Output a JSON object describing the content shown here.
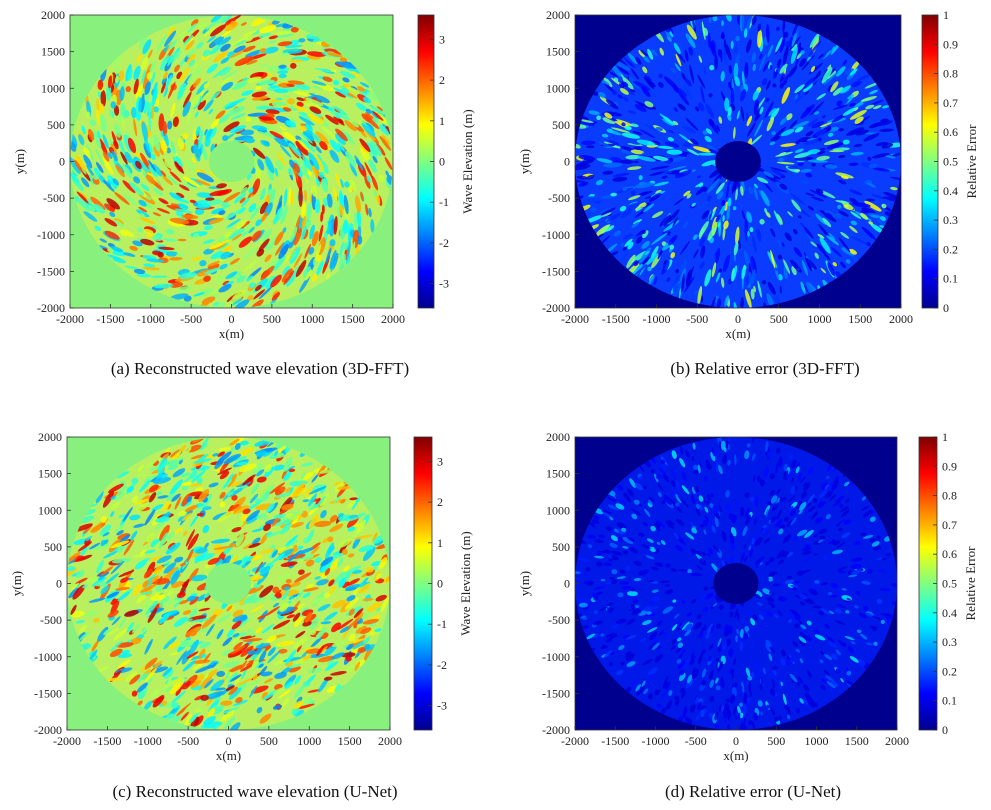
{
  "colors": {
    "jet": [
      "#00008f",
      "#0000ff",
      "#0080ff",
      "#00ffff",
      "#80ff80",
      "#ffff00",
      "#ff8000",
      "#ff0000",
      "#800000"
    ],
    "field_background": "#88f07c",
    "error_background": "#00008f",
    "hole": "#88f07c",
    "error_hole": "#00008f"
  },
  "chart_data": [
    {
      "id": "a",
      "type": "heatmap",
      "title": "",
      "caption": "(a)  Reconstructed wave elevation (3D-FFT)",
      "xlabel": "x(m)",
      "ylabel": "y(m)",
      "xlim": [
        -2000,
        2000
      ],
      "ylim": [
        -2000,
        2000
      ],
      "xticks": [
        "-2000",
        "-1500",
        "-1000",
        "-500",
        "0",
        "500",
        "1000",
        "1500",
        "2000"
      ],
      "yticks": [
        "2000",
        "1500",
        "1000",
        "500",
        "0",
        "-500",
        "-1000",
        "-1500",
        "-2000"
      ],
      "colorbar": {
        "label": "Wave Elevation (m)",
        "range": [
          -3.6,
          3.6
        ],
        "ticks": [
          "3",
          "2",
          "1",
          "0",
          "-1",
          "-2",
          "-3"
        ]
      },
      "field": {
        "kind": "elevation",
        "outer_radius": 2000,
        "inner_radius": 280,
        "hole_x": 0,
        "hole_y": 0
      }
    },
    {
      "id": "b",
      "type": "heatmap",
      "title": "",
      "caption": "(b)  Relative error (3D-FFT)",
      "xlabel": "x(m)",
      "ylabel": "y(m)",
      "xlim": [
        -2000,
        2000
      ],
      "ylim": [
        -2000,
        2000
      ],
      "xticks": [
        "-2000",
        "-1500",
        "-1000",
        "-500",
        "0",
        "500",
        "1000",
        "1500",
        "2000"
      ],
      "yticks": [
        "2000",
        "1500",
        "1000",
        "500",
        "0",
        "-500",
        "-1000",
        "-1500",
        "-2000"
      ],
      "colorbar": {
        "label": "Relative Error",
        "range": [
          0,
          1
        ],
        "ticks": [
          "1",
          "0.9",
          "0.8",
          "0.7",
          "0.6",
          "0.5",
          "0.4",
          "0.3",
          "0.2",
          "0.1",
          "0"
        ]
      },
      "field": {
        "kind": "error",
        "outer_radius": 2000,
        "inner_radius": 280,
        "hole_x": 0,
        "hole_y": 0
      }
    },
    {
      "id": "c",
      "type": "heatmap",
      "title": "",
      "caption": "(c)  Reconstructed wave elevation (U-Net)",
      "xlabel": "x(m)",
      "ylabel": "y(m)",
      "xlim": [
        -2000,
        2000
      ],
      "ylim": [
        -2000,
        2000
      ],
      "xticks": [
        "-2000",
        "-1500",
        "-1000",
        "-500",
        "0",
        "500",
        "1000",
        "1500",
        "2000"
      ],
      "yticks": [
        "2000",
        "1500",
        "1000",
        "500",
        "0",
        "-500",
        "-1000",
        "-1500",
        "-2000"
      ],
      "colorbar": {
        "label": "Wave Elevation (m)",
        "range": [
          -3.6,
          3.6
        ],
        "ticks": [
          "3",
          "2",
          "1",
          "0",
          "-1",
          "-2",
          "-3"
        ]
      },
      "field": {
        "kind": "elevation",
        "outer_radius": 2000,
        "inner_radius": 280,
        "hole_x": 0,
        "hole_y": 0
      }
    },
    {
      "id": "d",
      "type": "heatmap",
      "title": "",
      "caption": "(d)  Relative error (U-Net)",
      "xlabel": "x(m)",
      "ylabel": "y(m)",
      "xlim": [
        -2000,
        2000
      ],
      "ylim": [
        -2000,
        2000
      ],
      "xticks": [
        "-2000",
        "-1500",
        "-1000",
        "-500",
        "0",
        "500",
        "1000",
        "1500",
        "2000"
      ],
      "yticks": [
        "2000",
        "1500",
        "1000",
        "500",
        "0",
        "-500",
        "-1000",
        "-1500",
        "-2000"
      ],
      "colorbar": {
        "label": "Relative Error",
        "range": [
          0,
          1
        ],
        "ticks": [
          "1",
          "0.9",
          "0.8",
          "0.7",
          "0.6",
          "0.5",
          "0.4",
          "0.3",
          "0.2",
          "0.1",
          "0"
        ]
      },
      "field": {
        "kind": "error_low",
        "outer_radius": 2000,
        "inner_radius": 280,
        "hole_x": 0,
        "hole_y": 0
      }
    }
  ]
}
